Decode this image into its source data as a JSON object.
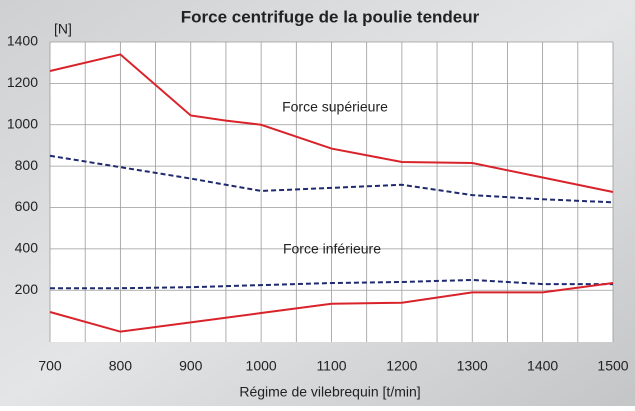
{
  "chart_data": {
    "type": "line",
    "title": "Force centrifuge de la poulie tendeur",
    "y_unit": "[N]",
    "x_label": "Régime de vilebrequin [t/min]",
    "annotations": [
      "Force supérieure",
      "Force inférieure"
    ],
    "xlim": [
      700,
      1500
    ],
    "xticks": [
      700,
      800,
      900,
      1000,
      1100,
      1200,
      1300,
      1400,
      1500
    ],
    "xminorticks": [
      750,
      850,
      950,
      1050,
      1150,
      1250,
      1350,
      1450
    ],
    "ylim": [
      -50,
      1400
    ],
    "yticks": [
      200,
      400,
      600,
      800,
      1000,
      1200,
      1400
    ],
    "grid": true,
    "series": [
      {
        "color": "#d9232a",
        "dash": false,
        "x": [
          700,
          800,
          900,
          950,
          1000,
          1100,
          1200,
          1300,
          1400,
          1500
        ],
        "values": [
          1260,
          1340,
          1045,
          1020,
          1000,
          885,
          820,
          815,
          745,
          675
        ]
      },
      {
        "color": "#1f2a6e",
        "dash": true,
        "x": [
          700,
          800,
          900,
          1000,
          1100,
          1200,
          1300,
          1400,
          1500
        ],
        "values": [
          850,
          795,
          740,
          680,
          695,
          710,
          660,
          640,
          625
        ]
      },
      {
        "color": "#1f2a6e",
        "dash": true,
        "x": [
          700,
          800,
          900,
          1000,
          1100,
          1200,
          1300,
          1400,
          1500
        ],
        "values": [
          210,
          210,
          215,
          225,
          235,
          240,
          250,
          230,
          230
        ]
      },
      {
        "color": "#d9232a",
        "dash": false,
        "x": [
          700,
          800,
          900,
          1000,
          1100,
          1200,
          1300,
          1400,
          1500
        ],
        "values": [
          95,
          0,
          45,
          90,
          135,
          140,
          190,
          190,
          235
        ]
      }
    ]
  }
}
